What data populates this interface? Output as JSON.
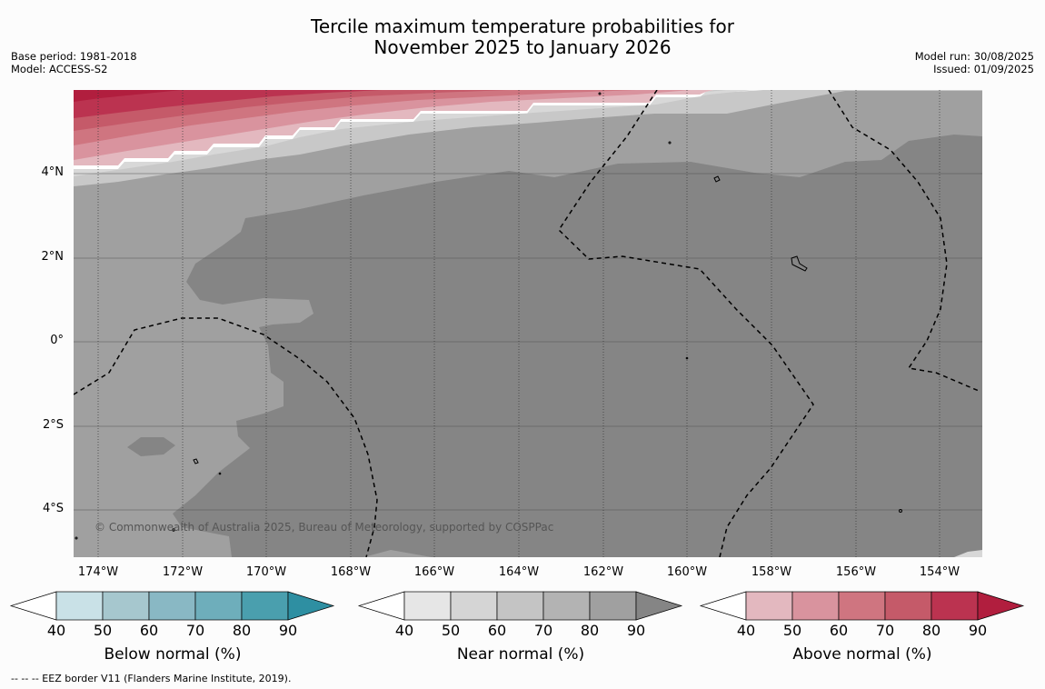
{
  "title": {
    "line1": "Tercile maximum temperature probabilities for",
    "line2": "November 2025 to January 2026"
  },
  "meta_left": {
    "base_period": "Base period: 1981-2018",
    "model": "Model: ACCESS-S2"
  },
  "meta_right": {
    "model_run": "Model run: 30/08/2025",
    "issued": "Issued: 01/09/2025"
  },
  "map": {
    "lat_labels": [
      "4°N",
      "2°N",
      "0°",
      "2°S",
      "4°S"
    ],
    "lon_labels": [
      "174°W",
      "172°W",
      "170°W",
      "168°W",
      "166°W",
      "164°W",
      "162°W",
      "160°W",
      "158°W",
      "156°W",
      "154°W"
    ],
    "copyright": "© Commonwealth of Australia 2025, Bureau of Meteorology, supported by COSPPac",
    "colors": {
      "near_60_70": "#c8c8c8",
      "near_70_80": "#a0a0a0",
      "near_80_90": "#858585",
      "above_bands": [
        "#e3b8bf",
        "#d9939e",
        "#cf7580",
        "#c55a69",
        "#bb3350"
      ],
      "land_outline": "#000000"
    }
  },
  "colorbars": [
    {
      "label": "Below normal (%)",
      "ticks": [
        "40",
        "50",
        "60",
        "70",
        "80",
        "90"
      ],
      "colors": [
        "#ffffff",
        "#c9e1e7",
        "#a6c7ce",
        "#89b8c4",
        "#6eaebb",
        "#4a9fae",
        "#2e8fa2"
      ]
    },
    {
      "label": "Near normal (%)",
      "ticks": [
        "40",
        "50",
        "60",
        "70",
        "80",
        "90"
      ],
      "colors": [
        "#ffffff",
        "#e6e6e6",
        "#d5d5d5",
        "#c4c4c4",
        "#b3b3b3",
        "#a0a0a0",
        "#858585"
      ]
    },
    {
      "label": "Above normal (%)",
      "ticks": [
        "40",
        "50",
        "60",
        "70",
        "80",
        "90"
      ],
      "colors": [
        "#ffffff",
        "#e3b8bf",
        "#d9939e",
        "#cf7580",
        "#c55a69",
        "#bb3350",
        "#b11e3e"
      ]
    }
  ],
  "footnote": "--  --  -- EEZ border V11 (Flanders Marine Institute, 2019)."
}
